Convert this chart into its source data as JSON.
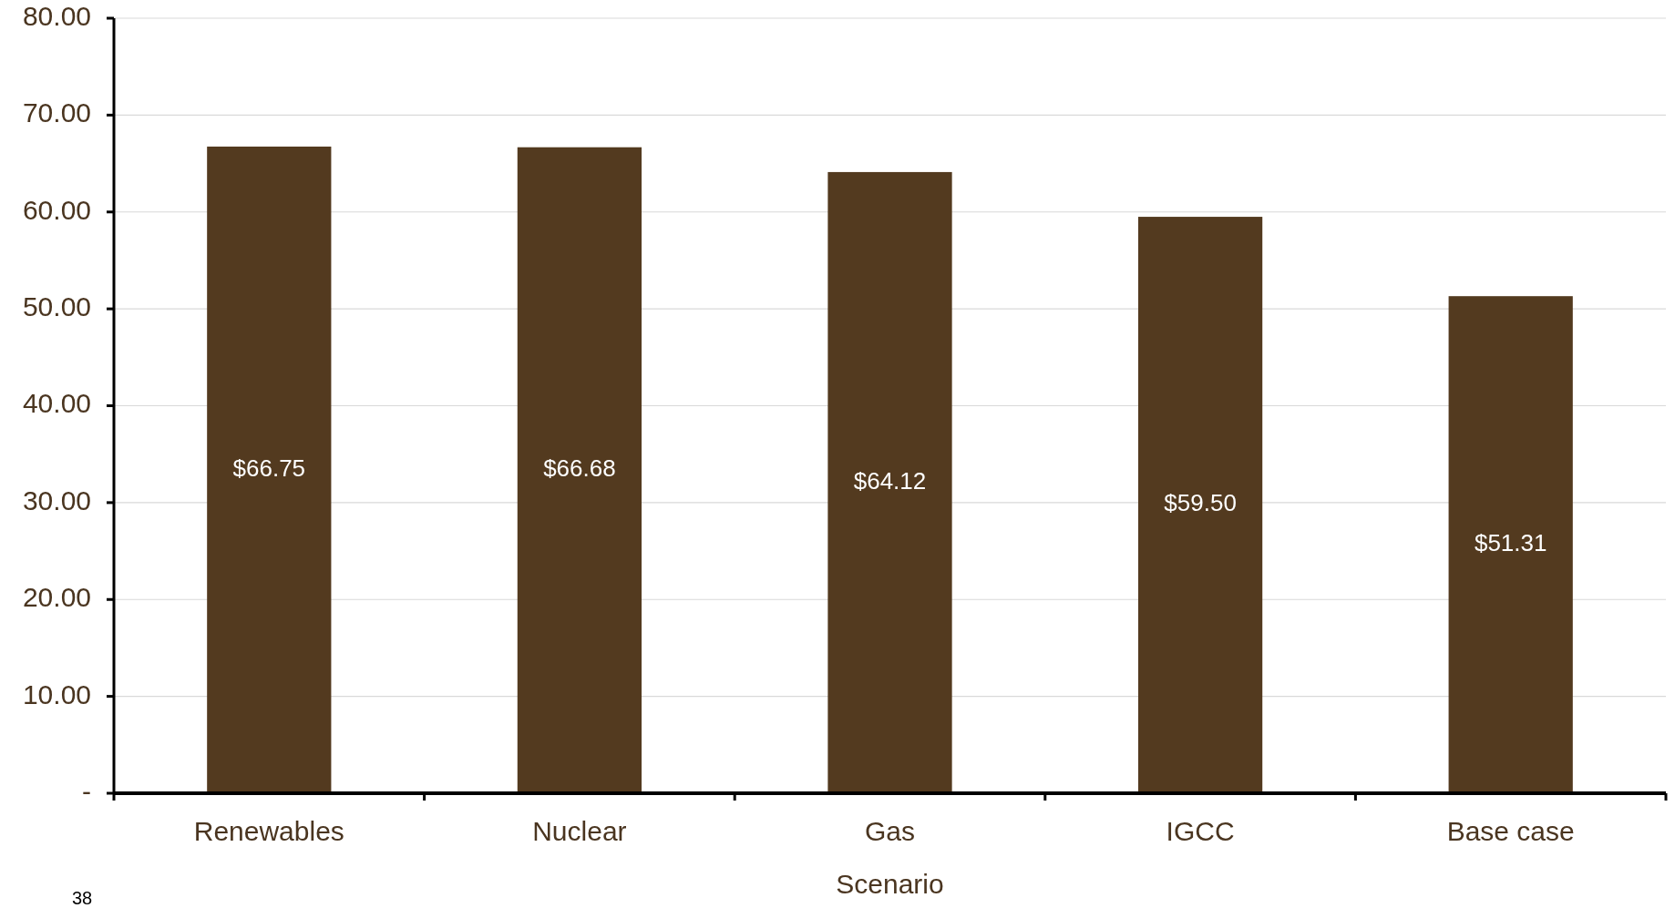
{
  "chart_data": {
    "type": "bar",
    "xlabel": "Scenario",
    "categories": [
      "Renewables",
      "Nuclear",
      "Gas",
      "IGCC",
      "Base case"
    ],
    "values": [
      66.75,
      66.68,
      64.12,
      59.5,
      51.31
    ],
    "value_labels": [
      "$66.75",
      "$66.68",
      "$64.12",
      "$59.50",
      "$51.31"
    ],
    "color": "#533a1f",
    "ylim": [
      0,
      80
    ],
    "yticks": [
      {
        "value": 0,
        "label": "-"
      },
      {
        "value": 10,
        "label": "10.00"
      },
      {
        "value": 20,
        "label": "20.00"
      },
      {
        "value": 30,
        "label": "30.00"
      },
      {
        "value": 40,
        "label": "40.00"
      },
      {
        "value": 50,
        "label": "50.00"
      },
      {
        "value": 60,
        "label": "60.00"
      },
      {
        "value": 70,
        "label": "70.00"
      },
      {
        "value": 80,
        "label": "80.00"
      }
    ],
    "grid": "y",
    "annotations": [
      "38"
    ]
  }
}
